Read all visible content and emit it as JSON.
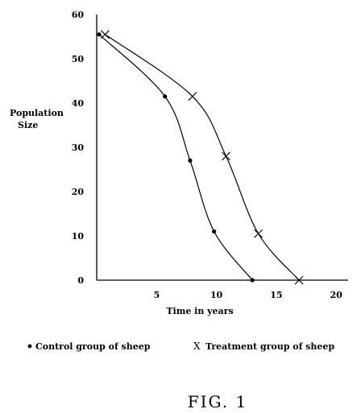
{
  "chart_data": {
    "type": "line",
    "xlabel": "Time in years",
    "ylabel_line1": "Population",
    "ylabel_line2": "Size",
    "xlim": [
      0,
      21
    ],
    "ylim": [
      0,
      60
    ],
    "x_ticks": [
      5,
      10,
      15,
      20
    ],
    "y_ticks": [
      0,
      10,
      20,
      30,
      40,
      50,
      60
    ],
    "series": [
      {
        "key": "control",
        "name": "Control group of sheep",
        "marker": "dot",
        "points": [
          [
            0.2,
            55.5
          ],
          [
            5.7,
            41.5
          ],
          [
            7.8,
            27
          ],
          [
            9.8,
            11
          ],
          [
            13.0,
            0
          ]
        ]
      },
      {
        "key": "treatment",
        "name": "Treatment group of sheep",
        "marker": "x",
        "points": [
          [
            0.7,
            55.5
          ],
          [
            8.0,
            41.5
          ],
          [
            10.8,
            28
          ],
          [
            13.5,
            10.5
          ],
          [
            16.9,
            0
          ]
        ]
      }
    ],
    "legend": [
      {
        "symbol": "•",
        "label": "Control group of sheep"
      },
      {
        "symbol": "X",
        "label": "Treatment group of sheep"
      }
    ]
  },
  "caption": "FIG. 1"
}
